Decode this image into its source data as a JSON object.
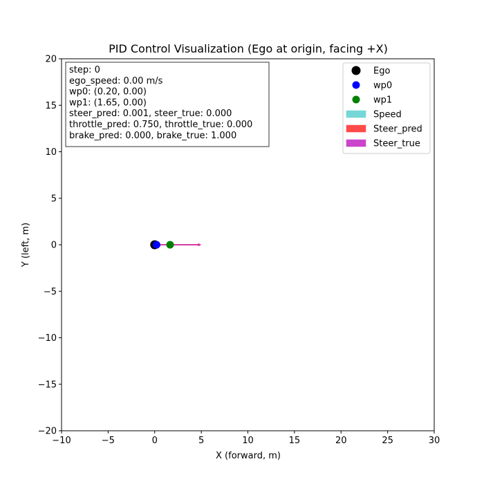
{
  "chart_data": {
    "type": "scatter",
    "title": "PID Control Visualization (Ego at origin, facing +X)",
    "xlabel": "X (forward, m)",
    "ylabel": "Y (left, m)",
    "xlim": [
      -10,
      30
    ],
    "ylim": [
      -20,
      20
    ],
    "xticks": [
      -10,
      -5,
      0,
      5,
      10,
      15,
      20,
      25,
      30
    ],
    "yticks": [
      -20,
      -15,
      -10,
      -5,
      0,
      5,
      10,
      15,
      20
    ],
    "grid": false,
    "legend_position": "top-right",
    "points": [
      {
        "name": "Ego",
        "x": 0.0,
        "y": 0.0,
        "color": "#000000"
      },
      {
        "name": "wp0",
        "x": 0.2,
        "y": 0.0,
        "color": "#0000ff"
      },
      {
        "name": "wp1",
        "x": 1.65,
        "y": 0.0,
        "color": "#008000"
      }
    ],
    "arrows": [
      {
        "name": "Speed",
        "x": 0,
        "y": 0,
        "dx": 0.0,
        "dy": 0.0,
        "color": "#4cc9c9"
      },
      {
        "name": "Steer_pred",
        "x": 0,
        "y": 0,
        "dx": 5.0,
        "dy": 0.005,
        "color": "#ff2020"
      },
      {
        "name": "Steer_true",
        "x": 0,
        "y": 0,
        "dx": 5.0,
        "dy": 0.0,
        "color": "#c020c0"
      }
    ],
    "legend": [
      {
        "label": "Ego",
        "kind": "marker",
        "color": "#000000"
      },
      {
        "label": "wp0",
        "kind": "marker",
        "color": "#0000ff"
      },
      {
        "label": "wp1",
        "kind": "marker",
        "color": "#008000"
      },
      {
        "label": "Speed",
        "kind": "patch",
        "color": "#74d6d6"
      },
      {
        "label": "Steer_pred",
        "kind": "patch",
        "color": "#ff4a4a"
      },
      {
        "label": "Steer_true",
        "kind": "patch",
        "color": "#cc44cc"
      }
    ],
    "info_box": [
      "step: 0",
      "ego_speed: 0.00 m/s",
      "wp0: (0.20, 0.00)",
      "wp1: (1.65, 0.00)",
      "steer_pred: 0.001, steer_true: 0.000",
      "throttle_pred: 0.750, throttle_true: 0.000",
      "brake_pred: 0.000, brake_true: 1.000"
    ]
  }
}
